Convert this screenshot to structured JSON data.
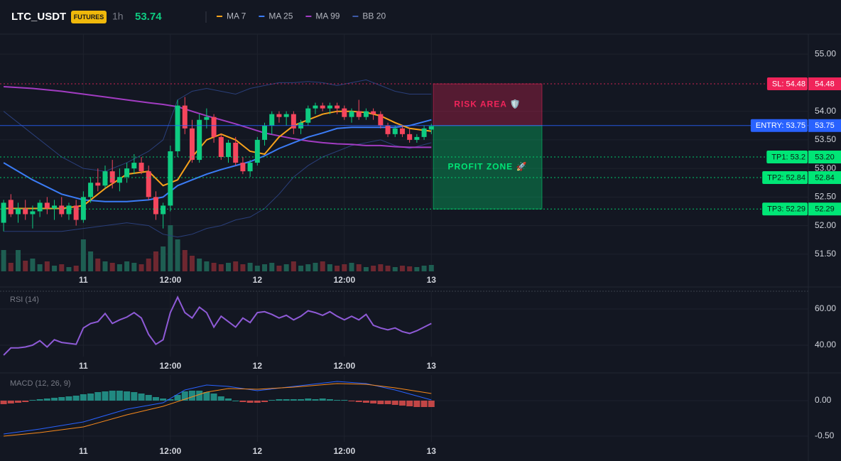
{
  "header": {
    "symbol": "LTC_USDT",
    "badge": "FUTURES",
    "interval": "1h",
    "last_price": 53.74
  },
  "chart_data": [
    {
      "type": "candlestick",
      "up_color": "#0ecb81",
      "down_color": "#f6465d",
      "volume_up_color": "#1e5e52",
      "volume_down_color": "#6e2730",
      "candles": [
        [
          52.05,
          52.45,
          51.9,
          52.4
        ],
        [
          52.45,
          52.55,
          52.15,
          52.2
        ],
        [
          52.2,
          52.4,
          52.05,
          52.3
        ],
        [
          52.3,
          52.45,
          52.1,
          52.2
        ],
        [
          52.2,
          52.35,
          51.95,
          52.25
        ],
        [
          52.25,
          52.45,
          52.15,
          52.4
        ],
        [
          52.4,
          52.5,
          52.2,
          52.3
        ],
        [
          52.3,
          52.45,
          52.1,
          52.35
        ],
        [
          52.35,
          52.5,
          52.15,
          52.2
        ],
        [
          52.2,
          52.4,
          52.1,
          52.35
        ],
        [
          52.35,
          52.45,
          52.0,
          52.1
        ],
        [
          52.1,
          52.6,
          52.05,
          52.5
        ],
        [
          52.5,
          52.85,
          52.4,
          52.75
        ],
        [
          52.75,
          53.0,
          52.6,
          52.7
        ],
        [
          52.7,
          53.05,
          52.65,
          52.95
        ],
        [
          52.95,
          53.15,
          52.65,
          52.75
        ],
        [
          52.75,
          53.0,
          52.6,
          52.85
        ],
        [
          52.85,
          53.1,
          52.75,
          53.0
        ],
        [
          53.0,
          53.25,
          52.9,
          53.1
        ],
        [
          53.1,
          53.2,
          52.9,
          52.95
        ],
        [
          52.95,
          53.05,
          52.45,
          52.5
        ],
        [
          52.5,
          52.6,
          52.1,
          52.2
        ],
        [
          52.2,
          52.4,
          51.95,
          52.35
        ],
        [
          52.35,
          53.4,
          52.25,
          53.3
        ],
        [
          53.3,
          54.2,
          53.2,
          54.1
        ],
        [
          54.1,
          54.25,
          53.6,
          53.7
        ],
        [
          53.7,
          53.85,
          53.1,
          53.15
        ],
        [
          53.15,
          53.95,
          53.1,
          53.85
        ],
        [
          53.85,
          54.05,
          53.7,
          53.9
        ],
        [
          53.9,
          53.95,
          53.45,
          53.55
        ],
        [
          53.55,
          53.6,
          53.15,
          53.2
        ],
        [
          53.2,
          53.5,
          53.1,
          53.45
        ],
        [
          53.45,
          53.55,
          53.05,
          53.1
        ],
        [
          53.1,
          53.2,
          52.9,
          52.95
        ],
        [
          52.95,
          53.15,
          52.85,
          53.1
        ],
        [
          53.1,
          53.55,
          53.05,
          53.5
        ],
        [
          53.5,
          53.8,
          53.4,
          53.75
        ],
        [
          53.75,
          54.0,
          53.6,
          53.95
        ],
        [
          53.95,
          54.0,
          53.8,
          53.9
        ],
        [
          53.9,
          54.0,
          53.75,
          53.95
        ],
        [
          53.95,
          54.0,
          53.6,
          53.7
        ],
        [
          53.7,
          53.85,
          53.6,
          53.8
        ],
        [
          53.8,
          54.1,
          53.75,
          54.05
        ],
        [
          54.05,
          54.15,
          53.95,
          54.1
        ],
        [
          54.1,
          54.15,
          54.0,
          54.05
        ],
        [
          54.05,
          54.15,
          53.95,
          54.1
        ],
        [
          54.1,
          54.15,
          53.95,
          54.05
        ],
        [
          54.05,
          54.1,
          53.85,
          53.9
        ],
        [
          53.9,
          54.05,
          53.8,
          54.0
        ],
        [
          54.0,
          54.2,
          53.85,
          53.9
        ],
        [
          53.9,
          54.05,
          53.85,
          54.0
        ],
        [
          54.0,
          54.05,
          53.85,
          53.95
        ],
        [
          53.95,
          54.0,
          53.7,
          53.75
        ],
        [
          53.75,
          53.8,
          53.55,
          53.6
        ],
        [
          53.6,
          53.75,
          53.55,
          53.7
        ],
        [
          53.7,
          53.75,
          53.55,
          53.6
        ],
        [
          53.6,
          53.7,
          53.45,
          53.5
        ],
        [
          53.5,
          53.6,
          53.45,
          53.55
        ],
        [
          53.55,
          53.75,
          53.5,
          53.7
        ],
        [
          53.68,
          53.78,
          53.6,
          53.74
        ]
      ],
      "volumes": [
        30,
        12,
        30,
        15,
        18,
        10,
        14,
        8,
        10,
        6,
        8,
        45,
        28,
        18,
        14,
        12,
        10,
        14,
        12,
        10,
        18,
        28,
        35,
        65,
        45,
        30,
        22,
        18,
        14,
        12,
        10,
        12,
        14,
        10,
        12,
        8,
        10,
        12,
        8,
        10,
        14,
        8,
        10,
        12,
        14,
        10,
        8,
        10,
        12,
        10,
        6,
        8,
        10,
        8,
        6,
        8,
        7,
        6,
        8,
        9
      ],
      "xlim": [
        -0.5,
        111
      ],
      "xticks": [
        {
          "value": 11,
          "label": "11"
        },
        {
          "value": 23,
          "label": "12:00"
        },
        {
          "value": 35,
          "label": "12"
        },
        {
          "value": 47,
          "label": "12:00"
        },
        {
          "value": 59,
          "label": "13"
        }
      ],
      "ylim": [
        51.2,
        55.35
      ],
      "yticks": [
        {
          "value": 55,
          "label": "55.00"
        },
        {
          "value": 54,
          "label": "54.00"
        },
        {
          "value": 53.5,
          "label": "53.50"
        },
        {
          "value": 53,
          "label": "53.00"
        },
        {
          "value": 52.5,
          "label": "52.50"
        },
        {
          "value": 52,
          "label": "52.00"
        },
        {
          "value": 51.5,
          "label": "51.50"
        }
      ],
      "series": [
        {
          "name": "MA 7",
          "color": "#f7a21b",
          "x": [
            0,
            4,
            8,
            11,
            14,
            17,
            20,
            22,
            24,
            26,
            28,
            30,
            32,
            34,
            36,
            38,
            40,
            42,
            44,
            46,
            48,
            50,
            52,
            54,
            56,
            59
          ],
          "values": [
            52.3,
            52.3,
            52.3,
            52.35,
            52.65,
            52.9,
            52.95,
            52.7,
            52.8,
            53.2,
            53.5,
            53.6,
            53.5,
            53.3,
            53.25,
            53.55,
            53.75,
            53.85,
            53.95,
            54.0,
            54.0,
            53.98,
            53.92,
            53.8,
            53.7,
            53.65
          ]
        },
        {
          "name": "MA 25",
          "color": "#3b7cf6",
          "x": [
            0,
            4,
            8,
            11,
            14,
            17,
            20,
            22,
            24,
            26,
            28,
            30,
            32,
            34,
            36,
            38,
            40,
            42,
            44,
            46,
            48,
            50,
            52,
            54,
            56,
            59
          ],
          "values": [
            53.1,
            52.8,
            52.55,
            52.45,
            52.42,
            52.42,
            52.45,
            52.5,
            52.7,
            52.8,
            52.9,
            52.98,
            53.05,
            53.12,
            53.22,
            53.35,
            53.45,
            53.55,
            53.62,
            53.7,
            53.72,
            53.72,
            53.72,
            53.72,
            53.75,
            53.85
          ]
        },
        {
          "name": "MA 99",
          "color": "#a23cc2",
          "x": [
            0,
            4,
            8,
            11,
            14,
            17,
            20,
            22,
            24,
            26,
            28,
            30,
            32,
            34,
            36,
            38,
            40,
            42,
            44,
            46,
            48,
            50,
            52,
            54,
            56,
            59
          ],
          "values": [
            54.43,
            54.4,
            54.35,
            54.3,
            54.25,
            54.2,
            54.15,
            54.12,
            54.08,
            54.0,
            53.92,
            53.85,
            53.78,
            53.7,
            53.62,
            53.57,
            53.52,
            53.48,
            53.45,
            53.43,
            53.42,
            53.4,
            53.4,
            53.38,
            53.37,
            53.37
          ]
        },
        {
          "name": "BB 20",
          "color": "#2a3f7a",
          "x": [
            0,
            4,
            8,
            11,
            14,
            17,
            20,
            22,
            24,
            26,
            28,
            30,
            32,
            34,
            36,
            38,
            40,
            42,
            44,
            46,
            48,
            50,
            52,
            54,
            56,
            59
          ],
          "upper": [
            54.0,
            53.6,
            53.2,
            53.0,
            52.95,
            53.1,
            53.3,
            53.5,
            54.2,
            54.35,
            54.4,
            54.35,
            54.3,
            54.4,
            54.45,
            54.5,
            54.5,
            54.52,
            54.5,
            54.45,
            54.5,
            54.55,
            54.45,
            54.35,
            54.3,
            54.3
          ],
          "lower": [
            51.9,
            51.9,
            51.9,
            51.95,
            52.0,
            52.05,
            52.0,
            51.85,
            51.8,
            51.85,
            51.95,
            52.0,
            52.1,
            52.15,
            52.3,
            52.55,
            52.85,
            53.05,
            53.2,
            53.3,
            53.4,
            53.45,
            53.5,
            53.4,
            53.35,
            53.45
          ]
        }
      ],
      "levels": [
        {
          "label": "SL: 54.48",
          "price": 54.48,
          "price_label": "54.48",
          "color": "#f0245a",
          "text_color": "#ffffff",
          "style": "dotted"
        },
        {
          "label": "ENTRY: 53.75",
          "price": 53.75,
          "price_label": "53.75",
          "color": "#2962ff",
          "text_color": "#ffffff",
          "style": "solid"
        },
        {
          "label": "TP1: 53.2",
          "price": 53.2,
          "price_label": "53.20",
          "color": "#00e676",
          "text_color": "#0b1e14",
          "style": "dotted"
        },
        {
          "label": "TP2: 52.84",
          "price": 52.84,
          "price_label": "52.84",
          "color": "#00e676",
          "text_color": "#0b1e14",
          "style": "dotted"
        },
        {
          "label": "TP3: 52.29",
          "price": 52.29,
          "price_label": "52.29",
          "color": "#00e676",
          "text_color": "#0b1e14",
          "style": "dotted"
        }
      ],
      "zones": [
        {
          "label": "RISK AREA 🛡️",
          "color": "#f0245a"
        },
        {
          "label": "PROFIT ZONE 🚀",
          "color": "#00e676"
        }
      ]
    },
    {
      "type": "line",
      "title": "RSI (14)",
      "color": "#8e5ad6",
      "values": [
        34.5,
        38.5,
        38.5,
        39,
        40,
        42.5,
        39,
        43,
        41.5,
        41,
        40.5,
        49.5,
        52,
        53,
        57.5,
        52,
        54,
        55.5,
        58,
        55,
        46,
        40.5,
        43,
        58,
        66.5,
        58,
        55,
        61,
        58,
        50,
        56,
        53,
        50,
        55,
        52.5,
        58,
        58.5,
        57,
        55,
        56.5,
        54,
        56,
        59,
        58,
        56.5,
        58.5,
        56,
        54,
        56,
        54,
        57,
        51,
        49.5,
        48.5,
        49.5,
        47.5,
        46.5,
        48,
        50,
        52
      ],
      "xlim": [
        -0.5,
        111
      ],
      "xticks": [
        {
          "value": 11,
          "label": "11"
        },
        {
          "value": 23,
          "label": "12:00"
        },
        {
          "value": 35,
          "label": "12"
        },
        {
          "value": 47,
          "label": "12:00"
        },
        {
          "value": 59,
          "label": "13"
        }
      ],
      "ylim": [
        33.7,
        69.8
      ],
      "yticks": [
        {
          "value": 60,
          "label": "60.00"
        },
        {
          "value": 40,
          "label": "40.00"
        }
      ]
    },
    {
      "type": "macd",
      "title": "MACD (12, 26, 9)",
      "up_color": "#26a69a",
      "down_color": "#ef5350",
      "histogram": [
        -0.05,
        -0.04,
        -0.03,
        -0.02,
        0.01,
        0.02,
        0.03,
        0.04,
        0.05,
        0.06,
        0.07,
        0.09,
        0.1,
        0.12,
        0.13,
        0.14,
        0.14,
        0.13,
        0.12,
        0.1,
        0.08,
        0.05,
        0.03,
        0.02,
        0.08,
        0.13,
        0.14,
        0.14,
        0.12,
        0.1,
        0.06,
        0.03,
        0,
        -0.02,
        -0.03,
        -0.03,
        -0.02,
        0.01,
        0.02,
        0.02,
        0.02,
        0.02,
        0.03,
        0.02,
        0.03,
        0.02,
        0.01,
        0.01,
        -0.01,
        -0.02,
        -0.03,
        -0.04,
        -0.05,
        -0.05,
        -0.06,
        -0.07,
        -0.08,
        -0.09,
        -0.09,
        -0.09
      ],
      "series": [
        {
          "color": "#2962ff",
          "x": [
            0,
            5,
            11,
            17,
            22,
            25,
            28,
            31,
            35,
            40,
            46,
            50,
            54,
            59
          ],
          "values": [
            -0.47,
            -0.4,
            -0.3,
            -0.12,
            -0.03,
            0.15,
            0.22,
            0.2,
            0.14,
            0.2,
            0.27,
            0.24,
            0.15,
            0.01
          ]
        },
        {
          "color": "#f7891b",
          "x": [
            0,
            5,
            11,
            17,
            22,
            25,
            28,
            31,
            35,
            40,
            46,
            50,
            54,
            59
          ],
          "values": [
            -0.5,
            -0.45,
            -0.37,
            -0.2,
            -0.08,
            0.02,
            0.12,
            0.17,
            0.16,
            0.19,
            0.24,
            0.23,
            0.18,
            0.1
          ]
        }
      ],
      "xlim": [
        -0.5,
        111
      ],
      "xticks": [
        {
          "value": 11,
          "label": "11"
        },
        {
          "value": 23,
          "label": "12:00"
        },
        {
          "value": 35,
          "label": "12"
        },
        {
          "value": 47,
          "label": "12:00"
        },
        {
          "value": 59,
          "label": "13"
        }
      ],
      "ylim": [
        -0.58,
        0.36
      ],
      "yticks": [
        {
          "value": 0,
          "label": "0.00"
        },
        {
          "value": -0.5,
          "label": "-0.50"
        }
      ]
    }
  ]
}
